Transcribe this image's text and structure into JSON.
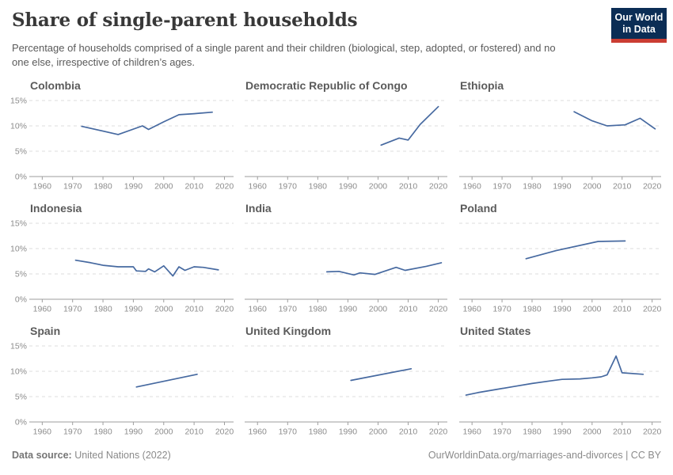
{
  "header": {
    "title": "Share of single-parent households",
    "subtitle": "Percentage of households comprised of a single parent and their children (biological, step, adopted, or fostered) and no one else, irrespective of children’s ages.",
    "logo": {
      "line1": "Our World",
      "line2": "in Data"
    }
  },
  "footer": {
    "datasource_label": "Data source:",
    "datasource_value": " United Nations (2022)",
    "credit": "OurWorldinData.org/marriages-and-divorces | CC BY"
  },
  "colors": {
    "line": "#4669a0",
    "grid": "#dcdcdc",
    "axis": "#9e9e9e",
    "tick_label": "#8c8c8c",
    "facet_title": "#5b5b5b",
    "logo_bg": "#0b2d55",
    "logo_red": "#cb3d33"
  },
  "chart_data": {
    "type": "line",
    "layout": "3x3 small multiples",
    "axes": {
      "xlim": [
        1956,
        2023
      ],
      "ylim": [
        0,
        15
      ],
      "xticks": [
        1960,
        1970,
        1980,
        1990,
        2000,
        2010,
        2020
      ],
      "yticks": [
        0,
        5,
        10,
        15
      ],
      "ytick_labels": [
        "0%",
        "5%",
        "10%",
        "15%"
      ],
      "grid": "horizontal dashed",
      "legend": "none"
    },
    "panels": [
      {
        "title": "Colombia",
        "x": [
          1973,
          1985,
          1993,
          1995,
          2000,
          2005,
          2010,
          2016
        ],
        "y": [
          9.9,
          8.3,
          10.0,
          9.3,
          10.8,
          12.2,
          12.4,
          12.7
        ]
      },
      {
        "title": "Democratic Republic of Congo",
        "x": [
          2001,
          2007,
          2010,
          2014,
          2020
        ],
        "y": [
          6.2,
          7.6,
          7.2,
          10.3,
          13.8
        ]
      },
      {
        "title": "Ethiopia",
        "x": [
          1994,
          2000,
          2005,
          2011,
          2016,
          2021
        ],
        "y": [
          12.8,
          11.0,
          10.0,
          10.2,
          11.5,
          9.4
        ]
      },
      {
        "title": "Indonesia",
        "x": [
          1971,
          1976,
          1980,
          1985,
          1990,
          1991,
          1994,
          1995,
          1997,
          2000,
          2003,
          2005,
          2007,
          2010,
          2013,
          2018
        ],
        "y": [
          7.7,
          7.2,
          6.7,
          6.4,
          6.4,
          5.6,
          5.5,
          6.0,
          5.4,
          6.6,
          4.6,
          6.4,
          5.7,
          6.4,
          6.3,
          5.8
        ]
      },
      {
        "title": "India",
        "x": [
          1983,
          1987,
          1992,
          1994,
          1999,
          2006,
          2009,
          2016,
          2021
        ],
        "y": [
          5.4,
          5.5,
          4.8,
          5.2,
          4.9,
          6.3,
          5.7,
          6.5,
          7.2
        ]
      },
      {
        "title": "Poland",
        "x": [
          1978,
          1988,
          2002,
          2011
        ],
        "y": [
          8.0,
          9.6,
          11.4,
          11.5
        ]
      },
      {
        "title": "Spain",
        "x": [
          1991,
          2011
        ],
        "y": [
          6.9,
          9.4
        ]
      },
      {
        "title": "United Kingdom",
        "x": [
          1991,
          2011
        ],
        "y": [
          8.2,
          10.5
        ]
      },
      {
        "title": "United States",
        "x": [
          1958,
          1962,
          1968,
          1974,
          1980,
          1986,
          1990,
          1996,
          2000,
          2003,
          2005,
          2008,
          2010,
          2017
        ],
        "y": [
          5.3,
          5.8,
          6.4,
          7.0,
          7.6,
          8.1,
          8.4,
          8.5,
          8.7,
          8.9,
          9.3,
          13.0,
          9.7,
          9.4
        ]
      }
    ]
  }
}
